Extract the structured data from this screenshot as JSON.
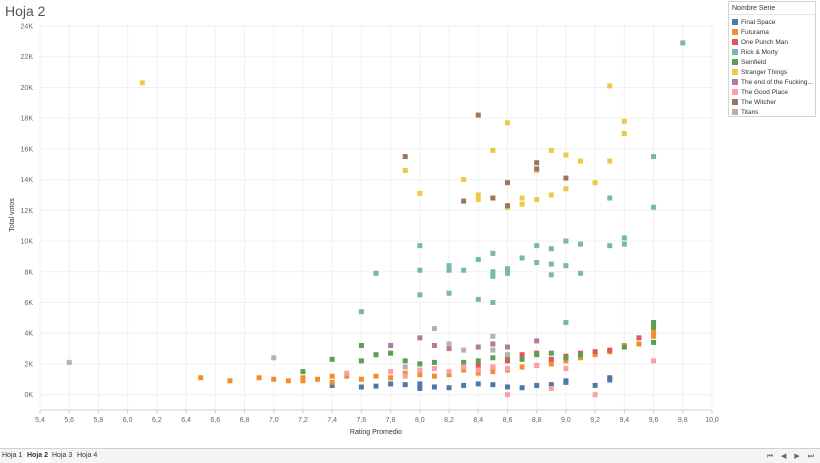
{
  "sheet_title": "Hoja 2",
  "legend": {
    "title": "Nombre Serie",
    "items": [
      {
        "label": "Final Space",
        "color": "#4e79a7"
      },
      {
        "label": "Futurama",
        "color": "#f28e2b"
      },
      {
        "label": "One Punch Man",
        "color": "#e15759"
      },
      {
        "label": "Rick & Morty",
        "color": "#76b7b2"
      },
      {
        "label": "Seinfield",
        "color": "#59a14f"
      },
      {
        "label": "Stranger Things",
        "color": "#edc948"
      },
      {
        "label": "The end of the Fucking...",
        "color": "#b07aa1"
      },
      {
        "label": "The Good Place",
        "color": "#ff9da7"
      },
      {
        "label": "The Witcher",
        "color": "#9c755f"
      },
      {
        "label": "Titans",
        "color": "#bab0ac"
      }
    ]
  },
  "tabs": [
    {
      "label": "Hoja 1",
      "active": false
    },
    {
      "label": "Hoja 2",
      "active": true
    },
    {
      "label": "Hoja 3",
      "active": false
    },
    {
      "label": "Hoja 4",
      "active": false
    }
  ],
  "chart_data": {
    "type": "scatter",
    "xlabel": "Rating Promedio",
    "ylabel": "Total votos",
    "xlim": [
      5.4,
      10.0
    ],
    "ylim": [
      -1000,
      24000
    ],
    "x_ticks": [
      5.4,
      5.6,
      5.8,
      6.0,
      6.2,
      6.4,
      6.6,
      6.8,
      7.0,
      7.2,
      7.4,
      7.6,
      7.8,
      8.0,
      8.2,
      8.4,
      8.6,
      8.8,
      9.0,
      9.2,
      9.4,
      9.6,
      9.8,
      10.0
    ],
    "x_tick_labels": [
      "5,4",
      "5,6",
      "5,8",
      "6,0",
      "6,2",
      "6,4",
      "6,6",
      "6,8",
      "7,0",
      "7,2",
      "7,4",
      "7,6",
      "7,8",
      "8,0",
      "8,2",
      "8,4",
      "8,6",
      "8,8",
      "9,0",
      "9,2",
      "9,4",
      "9,6",
      "9,8",
      "10,0"
    ],
    "y_ticks": [
      0,
      2000,
      4000,
      6000,
      8000,
      10000,
      12000,
      14000,
      16000,
      18000,
      20000,
      22000,
      24000
    ],
    "y_tick_labels": [
      "0K",
      "2K",
      "4K",
      "6K",
      "8K",
      "10K",
      "12K",
      "14K",
      "16K",
      "18K",
      "20K",
      "22K",
      "24K"
    ],
    "grid": true,
    "legend_position": "top-right",
    "series": [
      {
        "name": "Final Space",
        "color": "#4e79a7",
        "points": [
          [
            7.4,
            600
          ],
          [
            7.6,
            500
          ],
          [
            7.7,
            550
          ],
          [
            7.8,
            700
          ],
          [
            7.9,
            650
          ],
          [
            8.0,
            400
          ],
          [
            8.0,
            700
          ],
          [
            8.1,
            500
          ],
          [
            8.2,
            450
          ],
          [
            8.3,
            600
          ],
          [
            8.4,
            700
          ],
          [
            8.5,
            650
          ],
          [
            8.6,
            500
          ],
          [
            8.7,
            450
          ],
          [
            8.8,
            600
          ],
          [
            8.9,
            650
          ],
          [
            9.0,
            800
          ],
          [
            9.0,
            900
          ],
          [
            9.2,
            600
          ],
          [
            9.3,
            1100
          ],
          [
            9.3,
            950
          ]
        ]
      },
      {
        "name": "Futurama",
        "color": "#f28e2b",
        "points": [
          [
            6.5,
            1100
          ],
          [
            6.7,
            900
          ],
          [
            6.9,
            1100
          ],
          [
            7.0,
            1000
          ],
          [
            7.1,
            900
          ],
          [
            7.2,
            1100
          ],
          [
            7.2,
            900
          ],
          [
            7.3,
            1000
          ],
          [
            7.4,
            1200
          ],
          [
            7.4,
            800
          ],
          [
            7.5,
            1200
          ],
          [
            7.6,
            1000
          ],
          [
            7.7,
            1200
          ],
          [
            7.8,
            1100
          ],
          [
            7.9,
            1400
          ],
          [
            8.0,
            1300
          ],
          [
            8.1,
            1200
          ],
          [
            8.2,
            1300
          ],
          [
            8.3,
            1600
          ],
          [
            8.4,
            1400
          ],
          [
            8.5,
            1500
          ],
          [
            8.6,
            1600
          ],
          [
            8.7,
            1800
          ],
          [
            8.8,
            1900
          ],
          [
            8.9,
            2000
          ],
          [
            9.0,
            2200
          ],
          [
            9.1,
            2400
          ],
          [
            9.2,
            2600
          ],
          [
            9.3,
            2800
          ],
          [
            9.4,
            3200
          ],
          [
            9.5,
            3300
          ],
          [
            9.6,
            3800
          ],
          [
            9.6,
            4100
          ]
        ]
      },
      {
        "name": "One Punch Man",
        "color": "#e15759",
        "points": [
          [
            8.4,
            1900
          ],
          [
            8.5,
            1800
          ],
          [
            8.6,
            2200
          ],
          [
            8.7,
            2600
          ],
          [
            8.8,
            2700
          ],
          [
            8.9,
            2300
          ],
          [
            9.0,
            2500
          ],
          [
            9.1,
            2700
          ],
          [
            9.2,
            2800
          ],
          [
            9.3,
            2900
          ],
          [
            9.5,
            3700
          ]
        ]
      },
      {
        "name": "Rick & Morty",
        "color": "#76b7b2",
        "points": [
          [
            7.6,
            5400
          ],
          [
            7.7,
            7900
          ],
          [
            8.0,
            9700
          ],
          [
            8.0,
            8100
          ],
          [
            8.0,
            6500
          ],
          [
            8.2,
            8400
          ],
          [
            8.2,
            6600
          ],
          [
            8.2,
            8100
          ],
          [
            8.3,
            8100
          ],
          [
            8.4,
            8800
          ],
          [
            8.4,
            6200
          ],
          [
            8.5,
            9200
          ],
          [
            8.5,
            8000
          ],
          [
            8.5,
            7700
          ],
          [
            8.5,
            6000
          ],
          [
            8.6,
            8200
          ],
          [
            8.6,
            7900
          ],
          [
            8.7,
            8900
          ],
          [
            8.8,
            9700
          ],
          [
            8.8,
            8600
          ],
          [
            8.9,
            9500
          ],
          [
            8.9,
            8500
          ],
          [
            8.9,
            7800
          ],
          [
            9.0,
            10000
          ],
          [
            9.0,
            8400
          ],
          [
            9.0,
            4700
          ],
          [
            9.1,
            9800
          ],
          [
            9.1,
            7900
          ],
          [
            9.3,
            12800
          ],
          [
            9.3,
            9700
          ],
          [
            9.4,
            10200
          ],
          [
            9.4,
            9800
          ],
          [
            9.6,
            15500
          ],
          [
            9.6,
            12200
          ],
          [
            9.8,
            22900
          ]
        ]
      },
      {
        "name": "Seinfield",
        "color": "#59a14f",
        "points": [
          [
            7.2,
            1500
          ],
          [
            7.4,
            2300
          ],
          [
            7.6,
            3200
          ],
          [
            7.6,
            2200
          ],
          [
            7.7,
            2600
          ],
          [
            7.8,
            2700
          ],
          [
            7.9,
            2200
          ],
          [
            8.0,
            2000
          ],
          [
            8.1,
            2100
          ],
          [
            8.3,
            2100
          ],
          [
            8.4,
            2200
          ],
          [
            8.5,
            2400
          ],
          [
            8.6,
            2500
          ],
          [
            8.7,
            2300
          ],
          [
            8.8,
            2600
          ],
          [
            8.9,
            2700
          ],
          [
            9.0,
            2400
          ],
          [
            9.1,
            2600
          ],
          [
            9.4,
            3100
          ],
          [
            9.6,
            4700
          ],
          [
            9.6,
            4400
          ],
          [
            9.6,
            3400
          ]
        ]
      },
      {
        "name": "Stranger Things",
        "color": "#edc948",
        "points": [
          [
            6.1,
            20300
          ],
          [
            7.9,
            14600
          ],
          [
            8.0,
            13100
          ],
          [
            8.3,
            14000
          ],
          [
            8.4,
            13000
          ],
          [
            8.4,
            12700
          ],
          [
            8.5,
            15900
          ],
          [
            8.5,
            12800
          ],
          [
            8.6,
            17700
          ],
          [
            8.6,
            12200
          ],
          [
            8.7,
            12800
          ],
          [
            8.7,
            12400
          ],
          [
            8.8,
            12700
          ],
          [
            8.8,
            14600
          ],
          [
            8.9,
            15900
          ],
          [
            8.9,
            13000
          ],
          [
            9.0,
            15600
          ],
          [
            9.0,
            13400
          ],
          [
            9.1,
            15200
          ],
          [
            9.2,
            13800
          ],
          [
            9.3,
            20100
          ],
          [
            9.3,
            15200
          ],
          [
            9.4,
            17800
          ],
          [
            9.4,
            17000
          ]
        ]
      },
      {
        "name": "The end of the Fucking...",
        "color": "#b07aa1",
        "points": [
          [
            7.8,
            3200
          ],
          [
            8.0,
            3700
          ],
          [
            8.1,
            3200
          ],
          [
            8.2,
            3000
          ],
          [
            8.4,
            3100
          ],
          [
            8.5,
            3300
          ],
          [
            8.6,
            3100
          ],
          [
            8.8,
            3500
          ]
        ]
      },
      {
        "name": "The Good Place",
        "color": "#ff9da7",
        "points": [
          [
            7.5,
            1400
          ],
          [
            7.8,
            1500
          ],
          [
            7.9,
            1200
          ],
          [
            8.0,
            1600
          ],
          [
            8.1,
            1700
          ],
          [
            8.2,
            1500
          ],
          [
            8.3,
            1800
          ],
          [
            8.4,
            1600
          ],
          [
            8.5,
            1800
          ],
          [
            8.6,
            0
          ],
          [
            8.6,
            1700
          ],
          [
            8.8,
            1900
          ],
          [
            8.9,
            400
          ],
          [
            9.0,
            1700
          ],
          [
            9.2,
            0
          ],
          [
            9.6,
            2200
          ]
        ]
      },
      {
        "name": "The Witcher",
        "color": "#9c755f",
        "points": [
          [
            7.9,
            15500
          ],
          [
            8.3,
            12600
          ],
          [
            8.4,
            18200
          ],
          [
            8.5,
            12800
          ],
          [
            8.6,
            13800
          ],
          [
            8.6,
            12300
          ],
          [
            8.8,
            15100
          ],
          [
            8.8,
            14700
          ],
          [
            9.0,
            14100
          ]
        ]
      },
      {
        "name": "Titans",
        "color": "#bab0ac",
        "points": [
          [
            5.6,
            2100
          ],
          [
            7.0,
            2400
          ],
          [
            7.9,
            1800
          ],
          [
            8.1,
            4300
          ],
          [
            8.2,
            3300
          ],
          [
            8.3,
            2900
          ],
          [
            8.5,
            3800
          ],
          [
            8.5,
            2900
          ],
          [
            8.6,
            2600
          ]
        ]
      }
    ]
  }
}
